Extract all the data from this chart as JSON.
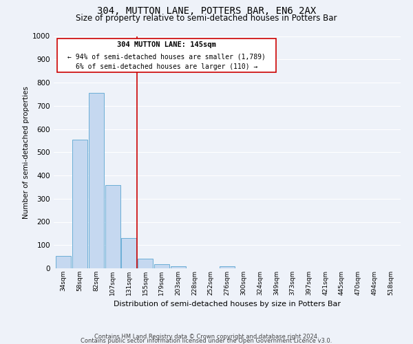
{
  "title": "304, MUTTON LANE, POTTERS BAR, EN6 2AX",
  "subtitle": "Size of property relative to semi-detached houses in Potters Bar",
  "xlabel": "Distribution of semi-detached houses by size in Potters Bar",
  "ylabel": "Number of semi-detached properties",
  "bar_labels": [
    "34sqm",
    "58sqm",
    "82sqm",
    "107sqm",
    "131sqm",
    "155sqm",
    "179sqm",
    "203sqm",
    "228sqm",
    "252sqm",
    "276sqm",
    "300sqm",
    "324sqm",
    "349sqm",
    "373sqm",
    "397sqm",
    "421sqm",
    "445sqm",
    "470sqm",
    "494sqm",
    "518sqm"
  ],
  "bar_values": [
    52,
    553,
    757,
    360,
    130,
    42,
    18,
    10,
    0,
    0,
    8,
    0,
    0,
    0,
    0,
    0,
    0,
    0,
    0,
    0,
    0
  ],
  "bar_color": "#c5d8f0",
  "bar_edge_color": "#6baed6",
  "ylim": [
    0,
    1000
  ],
  "yticks": [
    0,
    100,
    200,
    300,
    400,
    500,
    600,
    700,
    800,
    900,
    1000
  ],
  "vline_color": "#cc0000",
  "annotation_title": "304 MUTTON LANE: 145sqm",
  "annotation_line1": "← 94% of semi-detached houses are smaller (1,789)",
  "annotation_line2": "6% of semi-detached houses are larger (110) →",
  "annotation_box_color": "#ffffff",
  "annotation_box_edge": "#cc0000",
  "footer1": "Contains HM Land Registry data © Crown copyright and database right 2024.",
  "footer2": "Contains public sector information licensed under the Open Government Licence v3.0.",
  "bg_color": "#eef2f9",
  "plot_bg_color": "#eef2f9",
  "grid_color": "#ffffff",
  "title_fontsize": 10,
  "subtitle_fontsize": 8.5
}
